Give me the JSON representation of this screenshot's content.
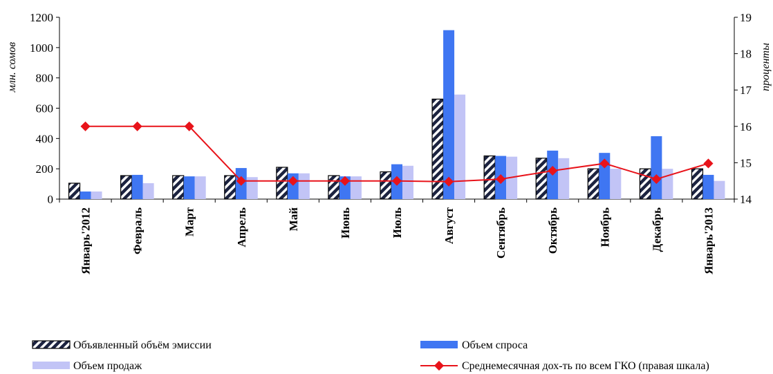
{
  "chart_data": {
    "type": "bar",
    "categories": [
      "Январь'2012",
      "Февраль",
      "Март",
      "Апрель",
      "Май",
      "Июнь",
      "Июль",
      "Август",
      "Сентябрь",
      "Октябрь",
      "Ноябрь",
      "Декабрь",
      "Январь'2013"
    ],
    "ylabel": "млн. сомов",
    "y2label": "проценты",
    "ylim": [
      0,
      1200
    ],
    "y2lim": [
      14,
      19
    ],
    "yticks": [
      0,
      200,
      400,
      600,
      800,
      1000,
      1200
    ],
    "y2ticks": [
      14,
      15,
      16,
      17,
      18,
      19
    ],
    "grid": false,
    "legend_position": "bottom",
    "series": [
      {
        "name": "Объявленный объём эмиссии",
        "kind": "bar",
        "axis": "left",
        "pattern": "hatched",
        "values": [
          105,
          155,
          155,
          155,
          210,
          155,
          180,
          660,
          285,
          270,
          200,
          200,
          200
        ]
      },
      {
        "name": "Объем спроса",
        "kind": "bar",
        "axis": "left",
        "color": "#3f76f2",
        "values": [
          50,
          160,
          150,
          205,
          170,
          150,
          230,
          1115,
          285,
          320,
          305,
          415,
          160
        ]
      },
      {
        "name": "Объем продаж",
        "kind": "bar",
        "axis": "left",
        "color": "#c2c4f6",
        "values": [
          50,
          105,
          150,
          145,
          170,
          150,
          220,
          690,
          280,
          270,
          200,
          200,
          120
        ]
      },
      {
        "name": "Среднемесячная дох-ть по всем ГКО (правая шкала)",
        "kind": "line",
        "axis": "right",
        "color": "#e8131a",
        "values": [
          16.0,
          16.0,
          16.0,
          14.5,
          14.5,
          14.5,
          14.5,
          14.48,
          14.55,
          14.78,
          14.98,
          14.55,
          14.98
        ]
      }
    ]
  }
}
